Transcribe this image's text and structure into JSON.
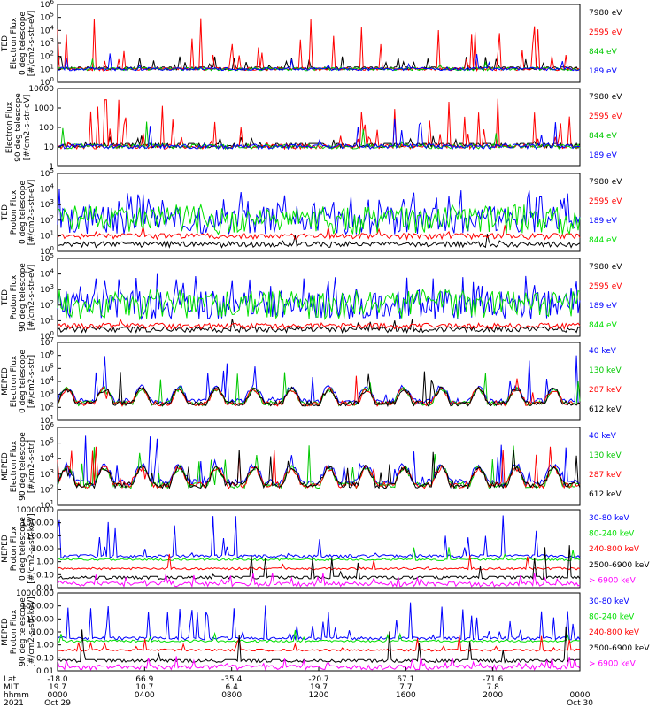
{
  "chart_data": [
    {
      "type": "line",
      "ylabel": [
        "TED",
        "Electron Flux",
        "0 deg telescope",
        "[#/cm2-s-str-eV]"
      ],
      "ylabel_style": "clean",
      "yscale": "log",
      "ylim": [
        1,
        1000000
      ],
      "ytick_labels": [
        "10^0",
        "10^1",
        "10^2",
        "10^3",
        "10^4",
        "10^5",
        "10^6"
      ],
      "legend_placement": "right",
      "series": [
        {
          "name": "7980 eV",
          "color": "#000000",
          "baseline": 10,
          "style": "blocks",
          "spike_max": 100,
          "spike_rate": 0.08
        },
        {
          "name": "2595 eV",
          "color": "#ff0000",
          "baseline": 10,
          "style": "spiky",
          "spike_max": 100000,
          "spike_rate": 0.12
        },
        {
          "name": "844 eV",
          "color": "#00c800",
          "baseline": 10,
          "style": "spiky",
          "spike_max": 300,
          "spike_rate": 0.03
        },
        {
          "name": "189 eV",
          "color": "#0000ff",
          "baseline": 10,
          "style": "spiky",
          "spike_max": 1000,
          "spike_rate": 0.03
        }
      ]
    },
    {
      "type": "line",
      "ylabel": [
        "Electron Flux",
        "90 deg telescope",
        "[#/cm2-s-str-eV]"
      ],
      "ylabel_style": "garbled",
      "yscale": "log",
      "ylim": [
        1,
        10000
      ],
      "ytick_labels": [
        "1",
        "10",
        "100",
        "1000",
        "10000"
      ],
      "legend_placement": "right",
      "series": [
        {
          "name": "7980 eV",
          "color": "#000000",
          "baseline": 10,
          "style": "blocks",
          "spike_max": 40,
          "spike_rate": 0.1
        },
        {
          "name": "2595 eV",
          "color": "#ff0000",
          "baseline": 10,
          "style": "spiky",
          "spike_max": 3000,
          "spike_rate": 0.15
        },
        {
          "name": "844 eV",
          "color": "#00c800",
          "baseline": 10,
          "style": "spiky",
          "spike_max": 300,
          "spike_rate": 0.03
        },
        {
          "name": "189 eV",
          "color": "#0000ff",
          "baseline": 10,
          "style": "spiky",
          "spike_max": 1000,
          "spike_rate": 0.04
        }
      ]
    },
    {
      "type": "line",
      "ylabel": [
        "TED",
        "Proton Flux",
        "0 deg telescope",
        "[#/cm2-s-str-eV]"
      ],
      "ylabel_style": "clean",
      "yscale": "log",
      "ylim": [
        1,
        100000
      ],
      "ytick_labels": [
        "10^0",
        "10^1",
        "10^2",
        "10^3",
        "10^4",
        "10^5"
      ],
      "legend_placement": "right",
      "series": [
        {
          "name": "7980 eV",
          "color": "#000000",
          "baseline": 3,
          "style": "dips",
          "spike_max": 50,
          "spike_rate": 0.02
        },
        {
          "name": "2595 eV",
          "color": "#ff0000",
          "baseline": 10,
          "style": "dips",
          "spike_max": 100,
          "spike_rate": 0.02
        },
        {
          "name": "189 eV",
          "color": "#0000ff",
          "baseline": 100,
          "style": "wavy",
          "spike_max": 10000,
          "spike_rate": 0.15
        },
        {
          "name": "844 eV",
          "color": "#00e000",
          "baseline": 100,
          "style": "wavy",
          "spike_max": 1000,
          "spike_rate": 0.3
        }
      ]
    },
    {
      "type": "line",
      "ylabel": [
        "TED",
        "Proton Flux",
        "90 deg telescope",
        "[#/cm2-s-str-eV]"
      ],
      "ylabel_style": "clean",
      "yscale": "log",
      "ylim": [
        1,
        100000
      ],
      "ytick_labels": [
        "10^0",
        "10^1",
        "10^2",
        "10^3",
        "10^4",
        "10^5"
      ],
      "legend_placement": "right",
      "series": [
        {
          "name": "7980 eV",
          "color": "#000000",
          "baseline": 3,
          "style": "dips",
          "spike_max": 30,
          "spike_rate": 0.01
        },
        {
          "name": "2595 eV",
          "color": "#ff0000",
          "baseline": 5,
          "style": "dips",
          "spike_max": 50,
          "spike_rate": 0.01
        },
        {
          "name": "189 eV",
          "color": "#0000ff",
          "baseline": 100,
          "style": "wavy",
          "spike_max": 10000,
          "spike_rate": 0.15
        },
        {
          "name": "844 eV",
          "color": "#00e000",
          "baseline": 100,
          "style": "wavy",
          "spike_max": 1000,
          "spike_rate": 0.3
        }
      ]
    },
    {
      "type": "line",
      "ylabel": [
        "MEPED",
        "Electron Flux",
        "0 deg telescope",
        "[#/cm2-s-str]"
      ],
      "ylabel_style": "clean",
      "yscale": "log",
      "ylim": [
        10,
        10000000
      ],
      "ytick_labels": [
        "10^1",
        "10^2",
        "10^3",
        "10^4",
        "10^5",
        "10^6",
        "10^7"
      ],
      "legend_placement": "right",
      "series": [
        {
          "name": "40 keV",
          "color": "#0000ff",
          "baseline": 300,
          "style": "orbit",
          "spike_max": 1000000,
          "spike_rate": 0.05
        },
        {
          "name": "130 keV",
          "color": "#00c800",
          "baseline": 200,
          "style": "orbit",
          "spike_max": 200000,
          "spike_rate": 0.03
        },
        {
          "name": "287 keV",
          "color": "#ff0000",
          "baseline": 200,
          "style": "orbit",
          "spike_max": 500000,
          "spike_rate": 0.03
        },
        {
          "name": "612 keV",
          "color": "#000000",
          "baseline": 200,
          "style": "orbit",
          "spike_max": 100000,
          "spike_rate": 0.03
        }
      ]
    },
    {
      "type": "line",
      "ylabel": [
        "MEPED",
        "Electron Flux",
        "90 deg telescope",
        "[#/cm2-s-str]"
      ],
      "ylabel_style": "clean",
      "yscale": "log",
      "ylim": [
        10,
        1000000
      ],
      "ytick_labels": [
        "10^1",
        "10^2",
        "10^3",
        "10^4",
        "10^5",
        "10^6"
      ],
      "legend_placement": "right",
      "series": [
        {
          "name": "40 keV",
          "color": "#0000ff",
          "baseline": 300,
          "style": "orbit",
          "spike_max": 300000,
          "spike_rate": 0.1
        },
        {
          "name": "130 keV",
          "color": "#00c800",
          "baseline": 200,
          "style": "orbit",
          "spike_max": 100000,
          "spike_rate": 0.06
        },
        {
          "name": "287 keV",
          "color": "#ff0000",
          "baseline": 200,
          "style": "orbit",
          "spike_max": 100000,
          "spike_rate": 0.06
        },
        {
          "name": "612 keV",
          "color": "#000000",
          "baseline": 200,
          "style": "orbit",
          "spike_max": 50000,
          "spike_rate": 0.04
        }
      ]
    },
    {
      "type": "line",
      "ylabel": [
        "MEPED",
        "Proton Flux",
        "0 deg telescope",
        "[#/cm2-s-str-keV]"
      ],
      "ylabel_style": "garbled",
      "yscale": "log",
      "ylim": [
        0.01,
        10000
      ],
      "ytick_labels": [
        "0.01",
        "0.10",
        "1.00",
        "10.00",
        "100.00",
        "1000.00",
        "10000.00"
      ],
      "legend_placement": "right",
      "series": [
        {
          "name": "30-80 keV",
          "color": "#0000ff",
          "baseline": 2.5,
          "style": "spiky",
          "spike_max": 5000,
          "spike_rate": 0.1
        },
        {
          "name": "80-240 keV",
          "color": "#00e000",
          "baseline": 1.5,
          "style": "flat",
          "spike_max": 100,
          "spike_rate": 0.04
        },
        {
          "name": "240-800 keV",
          "color": "#ff0000",
          "baseline": 0.3,
          "style": "flat",
          "spike_max": 50,
          "spike_rate": 0.04
        },
        {
          "name": "2500-6900 keV",
          "color": "#000000",
          "baseline": 0.05,
          "style": "blocks",
          "spike_max": 30,
          "spike_rate": 0.03
        },
        {
          "name": "> 6900 keV",
          "color": "#ff00ff",
          "baseline": 0.02,
          "style": "dips",
          "spike_max": 0.3,
          "spike_rate": 0.1
        }
      ]
    },
    {
      "type": "line",
      "ylabel": [
        "MEPED",
        "Proton Flux",
        "90 deg telescope",
        "[#/cm2-s-str-keV]"
      ],
      "ylabel_style": "garbled",
      "yscale": "log",
      "ylim": [
        0.01,
        10000
      ],
      "ytick_labels": [
        "0.01",
        "0.10",
        "1.00",
        "10.00",
        "100.00",
        "1000.00",
        "10000.00"
      ],
      "legend_placement": "right",
      "series": [
        {
          "name": "30-80 keV",
          "color": "#0000ff",
          "baseline": 3,
          "style": "spiky",
          "spike_max": 5000,
          "spike_rate": 0.12
        },
        {
          "name": "80-240 keV",
          "color": "#00e000",
          "baseline": 2,
          "style": "flat",
          "spike_max": 100,
          "spike_rate": 0.05
        },
        {
          "name": "240-800 keV",
          "color": "#ff0000",
          "baseline": 0.4,
          "style": "flat",
          "spike_max": 50,
          "spike_rate": 0.05
        },
        {
          "name": "2500-6900 keV",
          "color": "#000000",
          "baseline": 0.05,
          "style": "blocks",
          "spike_max": 30,
          "spike_rate": 0.03
        },
        {
          "name": "> 6900 keV",
          "color": "#ff00ff",
          "baseline": 0.02,
          "style": "dips",
          "spike_max": 0.3,
          "spike_rate": 0.12
        }
      ]
    }
  ],
  "x_axis": {
    "row_labels": [
      "Lat",
      "MLT",
      "hhmm",
      "2021"
    ],
    "ticks": [
      {
        "lat": "-18.0",
        "mlt": "19.7",
        "hhmm": "0000",
        "date": "Oct 29"
      },
      {
        "lat": "66.9",
        "mlt": "10.7",
        "hhmm": "0400",
        "date": ""
      },
      {
        "lat": "-35.4",
        "mlt": "6.4",
        "hhmm": "0800",
        "date": ""
      },
      {
        "lat": "-20.7",
        "mlt": "19.7",
        "hhmm": "1200",
        "date": ""
      },
      {
        "lat": "67.1",
        "mlt": "7.7",
        "hhmm": "1600",
        "date": ""
      },
      {
        "lat": "-71.6",
        "mlt": "7.8",
        "hhmm": "2000",
        "date": ""
      },
      {
        "lat": "",
        "mlt": "",
        "hhmm": "0000",
        "date": "Oct 30"
      }
    ]
  }
}
